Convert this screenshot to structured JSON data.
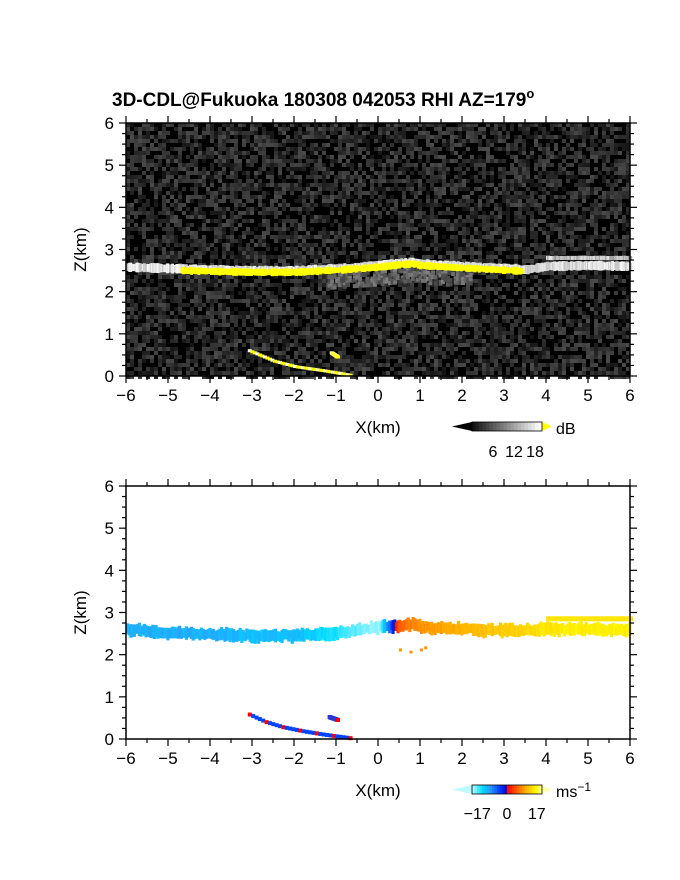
{
  "title": "3D-CDL@Fukuoka 180308 042053 RHI AZ=179",
  "title_sup": "o",
  "chart_data": [
    {
      "type": "heatmap",
      "name": "reflectivity",
      "xlabel": "X(km)",
      "ylabel": "Z(km)",
      "xlim": [
        -6,
        6
      ],
      "ylim": [
        0,
        6
      ],
      "xticks": [
        "−6",
        "−5",
        "−4",
        "−3",
        "−2",
        "−1",
        "0",
        "1",
        "2",
        "3",
        "4",
        "5",
        "6"
      ],
      "yticks": [
        "0",
        "1",
        "2",
        "3",
        "4",
        "5",
        "6"
      ],
      "background": "noise",
      "colorbar": {
        "unit": "dB",
        "ticks": [
          "6",
          "12",
          "18"
        ],
        "range": [
          0,
          20
        ]
      },
      "layer": {
        "x": [
          -6,
          -5,
          -4,
          -3,
          -2,
          -1,
          0,
          0.5,
          0.8,
          1,
          2,
          3,
          3.5,
          4,
          5,
          6
        ],
        "z": [
          2.58,
          2.55,
          2.52,
          2.5,
          2.5,
          2.55,
          2.62,
          2.68,
          2.7,
          2.66,
          2.6,
          2.55,
          2.52,
          2.6,
          2.62,
          2.6
        ],
        "core_from": -4.7,
        "core_to": 3.4
      },
      "secondary_layer": {
        "x_from": 4.0,
        "x_to": 6.0,
        "z": 2.8
      },
      "slant_streaks": [
        {
          "x": [
            -3.1,
            -2.5,
            -2.0,
            -1.3,
            -0.7
          ],
          "z": [
            0.6,
            0.35,
            0.22,
            0.12,
            0.02
          ]
        },
        {
          "x": [
            -1.15,
            -1.0
          ],
          "z": [
            0.55,
            0.45
          ]
        }
      ]
    },
    {
      "type": "heatmap",
      "name": "doppler velocity",
      "xlabel": "X(km)",
      "ylabel": "Z(km)",
      "xlim": [
        -6,
        6
      ],
      "ylim": [
        0,
        6
      ],
      "xticks": [
        "−6",
        "−5",
        "−4",
        "−3",
        "−2",
        "−1",
        "0",
        "1",
        "2",
        "3",
        "4",
        "5",
        "6"
      ],
      "yticks": [
        "0",
        "1",
        "2",
        "3",
        "4",
        "5",
        "6"
      ],
      "colorbar": {
        "unit": "ms",
        "unit_sup": "−1",
        "ticks": [
          "−17",
          "0",
          "17"
        ],
        "range": [
          -20,
          20
        ]
      },
      "layer": {
        "x": [
          -6,
          -5,
          -4,
          -3,
          -2,
          -1,
          0,
          0.5,
          0.8,
          1,
          2,
          3,
          4,
          5,
          6
        ],
        "z": [
          2.6,
          2.52,
          2.48,
          2.45,
          2.45,
          2.52,
          2.65,
          2.68,
          2.72,
          2.65,
          2.6,
          2.57,
          2.6,
          2.6,
          2.58
        ],
        "velocity": [
          -11,
          -11,
          -11,
          -12,
          -12,
          -15,
          -19,
          6,
          8,
          9,
          11,
          13,
          15,
          16,
          16
        ]
      },
      "secondary_layer": {
        "x_from": 4.0,
        "x_to": 6.0,
        "z": 2.85,
        "velocity": 15
      },
      "isolated_points": {
        "x": [
          0.5,
          0.75,
          1.0,
          1.1
        ],
        "z": [
          2.1,
          2.05,
          2.1,
          2.15
        ],
        "velocity": 9
      },
      "slant_streaks": [
        {
          "x": [
            -3.1,
            -2.7,
            -2.3,
            -1.8,
            -1.3,
            -0.7
          ],
          "z": [
            0.58,
            0.4,
            0.28,
            0.18,
            0.1,
            0.02
          ]
        },
        {
          "x": [
            -1.2,
            -1.0
          ],
          "z": [
            0.52,
            0.45
          ]
        }
      ]
    }
  ],
  "colors": {
    "background": "#000000",
    "layer_bright": "#d8d8d8",
    "layer_core": "#ffff00",
    "axis": "#000000"
  }
}
